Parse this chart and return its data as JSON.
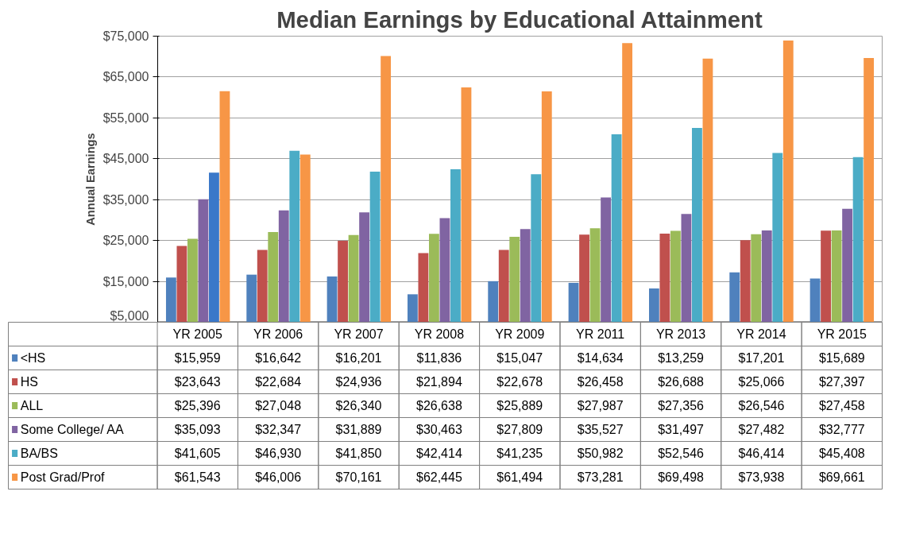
{
  "chart_data": {
    "type": "bar",
    "title": "Median Earnings by Educational Attainment",
    "ylabel": "Annual Earnings",
    "categories": [
      "YR 2005",
      "YR 2006",
      "YR 2007",
      "YR 2008",
      "YR 2009",
      "YR 2011",
      "YR 2013",
      "YR 2014",
      "YR 2015"
    ],
    "ylim": [
      5000,
      75000
    ],
    "yticks": [
      {
        "value": 5000,
        "label": "$5,000"
      },
      {
        "value": 15000,
        "label": "$15,000"
      },
      {
        "value": 25000,
        "label": "$25,000"
      },
      {
        "value": 35000,
        "label": "$35,000"
      },
      {
        "value": 45000,
        "label": "$45,000"
      },
      {
        "value": 55000,
        "label": "$55,000"
      },
      {
        "value": 65000,
        "label": "$65,000"
      },
      {
        "value": 75000,
        "label": "$75,000"
      }
    ],
    "grid": "y",
    "legend": "bottom",
    "series": [
      {
        "name": "<HS",
        "color": "#4f81bd",
        "values": [
          15959,
          16642,
          16201,
          11836,
          15047,
          14634,
          13259,
          17201,
          15689
        ],
        "value_labels": [
          "$15,959",
          "$16,642",
          "$16,201",
          "$11,836",
          "$15,047",
          "$14,634",
          "$13,259",
          "$17,201",
          "$15,689"
        ]
      },
      {
        "name": "HS",
        "color": "#c0504d",
        "values": [
          23643,
          22684,
          24936,
          21894,
          22678,
          26458,
          26688,
          25066,
          27397
        ],
        "value_labels": [
          "$23,643",
          "$22,684",
          "$24,936",
          "$21,894",
          "$22,678",
          "$26,458",
          "$26,688",
          "$25,066",
          "$27,397"
        ]
      },
      {
        "name": "ALL",
        "color": "#9bbb59",
        "values": [
          25396,
          27048,
          26340,
          26638,
          25889,
          27987,
          27356,
          26546,
          27458
        ],
        "value_labels": [
          "$25,396",
          "$27,048",
          "$26,340",
          "$26,638",
          "$25,889",
          "$27,987",
          "$27,356",
          "$26,546",
          "$27,458"
        ]
      },
      {
        "name": "Some College/  AA",
        "color": "#8064a2",
        "values": [
          35093,
          32347,
          31889,
          30463,
          27809,
          35527,
          31497,
          27482,
          32777
        ],
        "value_labels": [
          "$35,093",
          "$32,347",
          "$31,889",
          "$30,463",
          "$27,809",
          "$35,527",
          "$31,497",
          "$27,482",
          "$32,777"
        ]
      },
      {
        "name": "BA/BS",
        "color": "#4bacc6",
        "colors": [
          "#3a78c9",
          "#4bacc6",
          "#4bacc6",
          "#4bacc6",
          "#4bacc6",
          "#4bacc6",
          "#4bacc6",
          "#4bacc6",
          "#4bacc6"
        ],
        "values": [
          41605,
          46930,
          41850,
          42414,
          41235,
          50982,
          52546,
          46414,
          45408
        ],
        "value_labels": [
          "$41,605",
          "$46,930",
          "$41,850",
          "$42,414",
          "$41,235",
          "$50,982",
          "$52,546",
          "$46,414",
          "$45,408"
        ]
      },
      {
        "name": "Post Grad/Prof",
        "color": "#f79646",
        "values": [
          61543,
          46006,
          70161,
          62445,
          61494,
          73281,
          69498,
          73938,
          69661
        ],
        "value_labels": [
          "$61,543",
          "$46,006",
          "$70,161",
          "$62,445",
          "$61,494",
          "$73,281",
          "$69,498",
          "$73,938",
          "$69,661"
        ]
      }
    ]
  }
}
